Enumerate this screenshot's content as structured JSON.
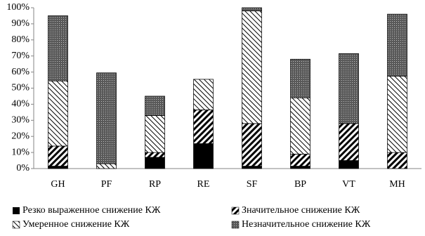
{
  "chart_data": {
    "type": "stacked-bar",
    "categories": [
      "GH",
      "PF",
      "RP",
      "RE",
      "SF",
      "BP",
      "VT",
      "MH"
    ],
    "series": [
      {
        "name": "Резко выраженное снижение КЖ",
        "color": "#000000",
        "pattern": "solid",
        "values": [
          1.5,
          0,
          7,
          15.5,
          1.5,
          1.5,
          5,
          0
        ]
      },
      {
        "name": "Значительное снижение КЖ",
        "color": "#000000",
        "pattern": "dense-hatch",
        "values": [
          12.5,
          0,
          3,
          21,
          26.5,
          7.5,
          23,
          10
        ]
      },
      {
        "name": "Умеренное снижение КЖ",
        "color": "#000000",
        "pattern": "sparse-hatch",
        "values": [
          40.5,
          3,
          23,
          19,
          70,
          35,
          0,
          47.5
        ]
      },
      {
        "name": "Незначительное снижение КЖ",
        "color": "#595959",
        "pattern": "dots",
        "values": [
          40.5,
          56.5,
          12,
          0,
          2,
          24,
          43.5,
          38.5
        ]
      }
    ],
    "ylim": [
      0,
      100
    ],
    "yticks": [
      {
        "value": 0,
        "label": "0%"
      },
      {
        "value": 10,
        "label": "10%"
      },
      {
        "value": 20,
        "label": "20%"
      },
      {
        "value": 30,
        "label": "30%"
      },
      {
        "value": 40,
        "label": "40%"
      },
      {
        "value": 50,
        "label": "50%"
      },
      {
        "value": 60,
        "label": "60%"
      },
      {
        "value": 70,
        "label": "70%"
      },
      {
        "value": 80,
        "label": "80%"
      },
      {
        "value": 90,
        "label": "90%"
      },
      {
        "value": 100,
        "label": "100%"
      }
    ],
    "grid": false,
    "legend": "bottom"
  }
}
